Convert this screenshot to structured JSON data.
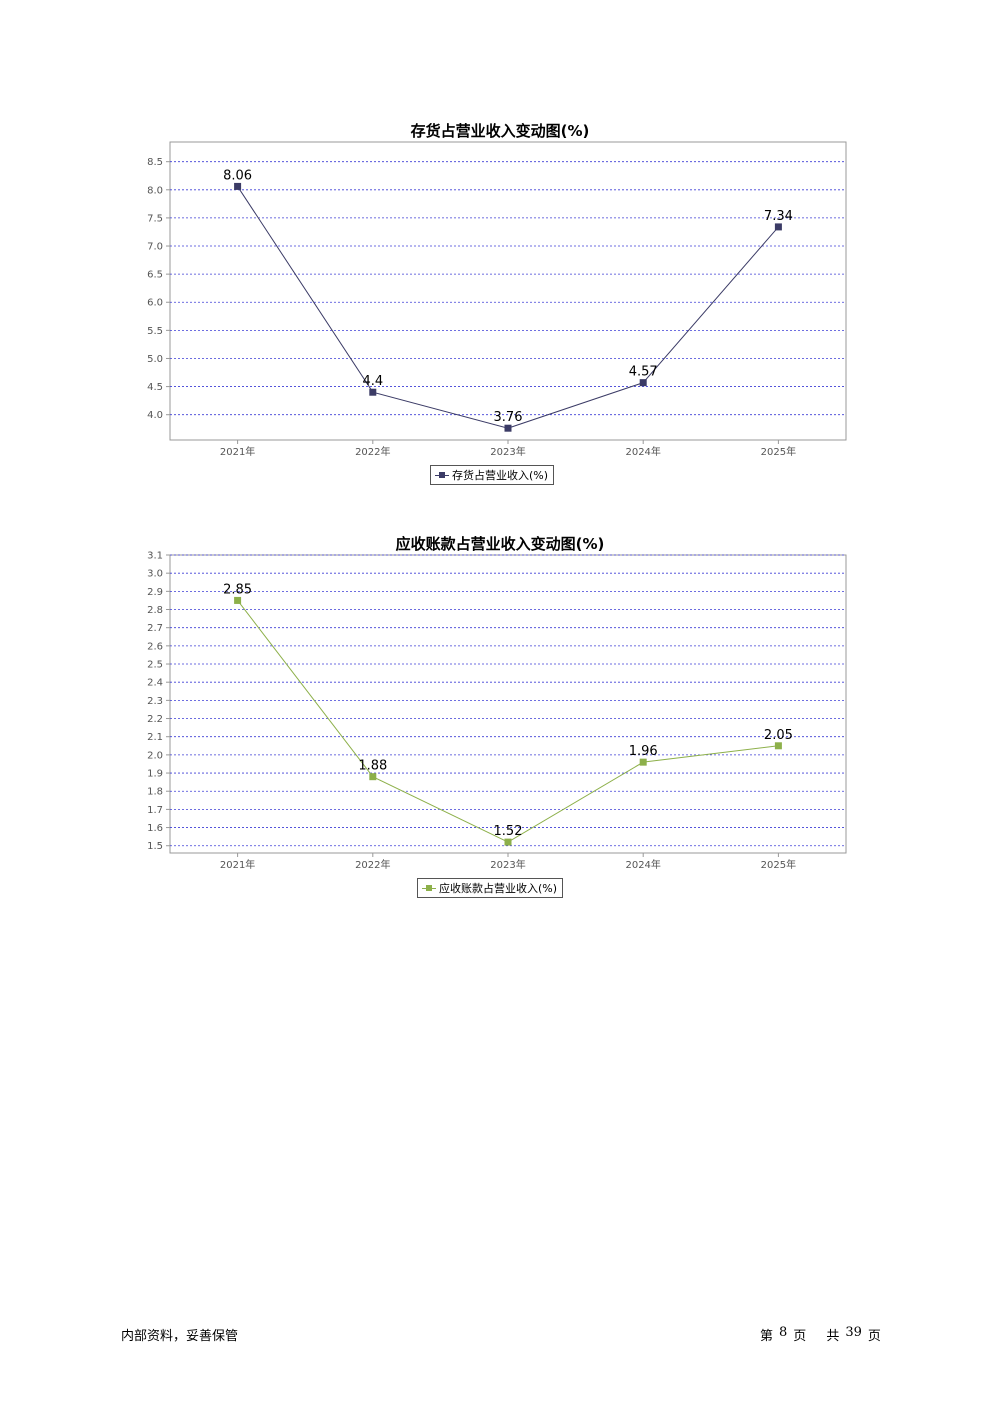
{
  "chart_data": [
    {
      "type": "line",
      "title": "存货占营业收入变动图(%)",
      "categories": [
        "2021年",
        "2022年",
        "2023年",
        "2024年",
        "2025年"
      ],
      "series": [
        {
          "name": "存货占营业收入(%)",
          "values": [
            8.06,
            4.4,
            3.76,
            4.57,
            7.34
          ],
          "color": "#3b3b66"
        }
      ],
      "y_ticks": [
        4.0,
        4.5,
        5.0,
        5.5,
        6.0,
        6.5,
        7.0,
        7.5,
        8.0,
        8.5
      ],
      "y_tick_labels": [
        "4.0",
        "4.5",
        "5.0",
        "5.5",
        "6.0",
        "6.5",
        "7.0",
        "7.5",
        "8.0",
        "8.5"
      ],
      "ylim": [
        3.55,
        8.85
      ],
      "grid": true,
      "grid_color": "#3d3dd6",
      "legend_position": "bottom"
    },
    {
      "type": "line",
      "title": "应收账款占营业收入变动图(%)",
      "categories": [
        "2021年",
        "2022年",
        "2023年",
        "2024年",
        "2025年"
      ],
      "series": [
        {
          "name": "应收账款占营业收入(%)",
          "values": [
            2.85,
            1.88,
            1.52,
            1.96,
            2.05
          ],
          "color": "#8db04a"
        }
      ],
      "y_ticks": [
        1.5,
        1.6,
        1.7,
        1.8,
        1.9,
        2.0,
        2.1,
        2.2,
        2.3,
        2.4,
        2.5,
        2.6,
        2.7,
        2.8,
        2.9,
        3.0,
        3.1
      ],
      "y_tick_labels": [
        "1.5",
        "1.6",
        "1.7",
        "1.8",
        "1.9",
        "2.0",
        "2.1",
        "2.2",
        "2.3",
        "2.4",
        "2.5",
        "2.6",
        "2.7",
        "2.8",
        "2.9",
        "3.0",
        "3.1"
      ],
      "ylim": [
        1.46,
        3.1
      ],
      "grid": true,
      "grid_color": "#3d3dd6",
      "legend_position": "bottom"
    }
  ],
  "footer": {
    "left": "内部资料，妥善保管",
    "page_prefix": "第",
    "page_number": "8",
    "page_suffix": "页",
    "total_prefix": "共",
    "total_pages": "39",
    "total_suffix": "页"
  }
}
